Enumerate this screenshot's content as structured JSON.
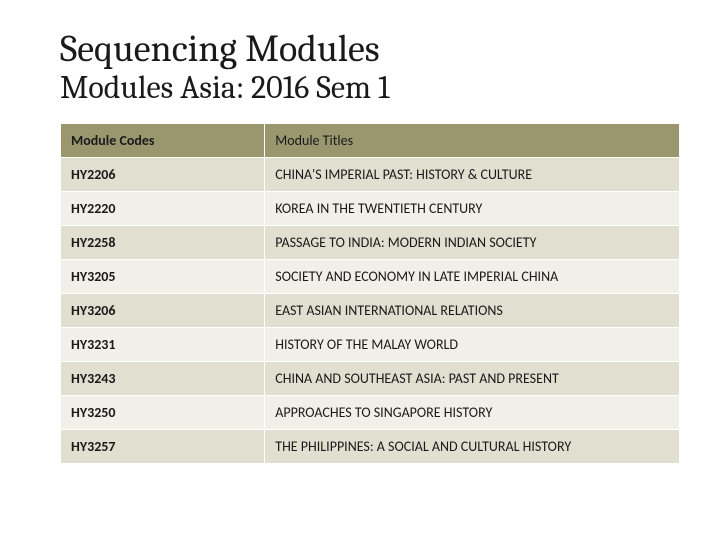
{
  "heading": {
    "main": "Sequencing Modules",
    "sub": "Modules Asia: 2016 Sem 1"
  },
  "table": {
    "type": "table",
    "header_bg": "#9a976f",
    "row_odd_bg": "#e0dfd0",
    "row_even_bg": "#f0efe8",
    "border_color": "#ffffff",
    "text_color": "#1a1a1a",
    "font_family": "Calibri",
    "header_fontsize": 14,
    "cell_fontsize": 14,
    "columns": [
      {
        "label": "Module Codes",
        "width_pct": 33,
        "align": "left"
      },
      {
        "label": "Module Titles",
        "width_pct": 67,
        "align": "left"
      }
    ],
    "rows": [
      {
        "code": "HY2206",
        "title": "CHINA'S IMPERIAL PAST: HISTORY & CULTURE"
      },
      {
        "code": "HY2220",
        "title": "KOREA IN THE TWENTIETH CENTURY"
      },
      {
        "code": "HY2258",
        "title": "PASSAGE TO INDIA: MODERN INDIAN SOCIETY"
      },
      {
        "code": "HY3205",
        "title": "SOCIETY AND ECONOMY IN LATE IMPERIAL CHINA"
      },
      {
        "code": "HY3206",
        "title": "EAST ASIAN INTERNATIONAL RELATIONS"
      },
      {
        "code": "HY3231",
        "title": "HISTORY OF THE MALAY WORLD"
      },
      {
        "code": "HY3243",
        "title": "CHINA AND SOUTHEAST ASIA: PAST AND PRESENT"
      },
      {
        "code": "HY3250",
        "title": "APPROACHES TO SINGAPORE HISTORY"
      },
      {
        "code": "HY3257",
        "title": "THE PHILIPPINES: A SOCIAL AND CULTURAL HISTORY"
      }
    ]
  }
}
